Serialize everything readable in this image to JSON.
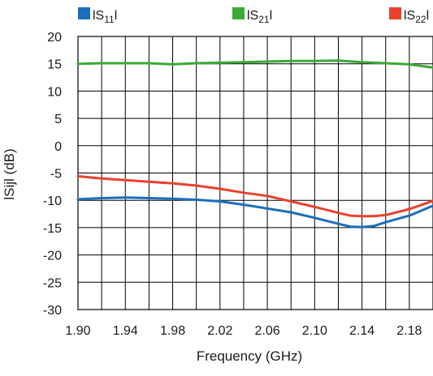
{
  "chart_data": {
    "type": "line",
    "title": "",
    "xlabel": "Frequency (GHz)",
    "ylabel": "lSijl (dB)",
    "xlim": [
      1.9,
      2.2
    ],
    "ylim": [
      -30,
      20
    ],
    "grid": true,
    "legend_position": "top",
    "x_ticks": [
      1.9,
      1.92,
      1.94,
      1.96,
      1.98,
      2.0,
      2.02,
      2.04,
      2.06,
      2.08,
      2.1,
      2.12,
      2.14,
      2.16,
      2.18,
      2.2
    ],
    "x_tick_labels": [
      "1.90",
      "1.94",
      "1.98",
      "2.02",
      "2.06",
      "2.10",
      "2.14",
      "2.18"
    ],
    "x_tick_label_values": [
      1.9,
      1.94,
      1.98,
      2.02,
      2.06,
      2.1,
      2.14,
      2.18
    ],
    "y_ticks": [
      20,
      15,
      10,
      5,
      0,
      -5,
      -10,
      -15,
      -20,
      -25,
      -30
    ],
    "y_tick_labels": [
      "20",
      "15",
      "10",
      "5",
      "0",
      "-5",
      "-10",
      "-15",
      "-20",
      "-25",
      "-30"
    ],
    "legend": [
      {
        "prefix": "lS",
        "sub": "11",
        "suffix": "l",
        "color": "#1a6fba"
      },
      {
        "prefix": "lS",
        "sub": "21",
        "suffix": "l",
        "color": "#3aaa35"
      },
      {
        "prefix": "lS",
        "sub": "22",
        "suffix": "l",
        "color": "#e8412c"
      }
    ],
    "series": [
      {
        "color": "#1a6fba",
        "x": [
          1.9,
          1.92,
          1.94,
          1.96,
          1.98,
          2.0,
          2.02,
          2.04,
          2.06,
          2.08,
          2.1,
          2.12,
          2.13,
          2.14,
          2.15,
          2.16,
          2.18,
          2.2
        ],
        "y": [
          -9.8,
          -9.6,
          -9.5,
          -9.6,
          -9.7,
          -9.9,
          -10.2,
          -10.8,
          -11.5,
          -12.2,
          -13.2,
          -14.3,
          -14.8,
          -14.9,
          -14.7,
          -14.0,
          -12.8,
          -11.0
        ]
      },
      {
        "color": "#3aaa35",
        "x": [
          1.9,
          1.92,
          1.94,
          1.96,
          1.98,
          2.0,
          2.02,
          2.04,
          2.06,
          2.08,
          2.1,
          2.12,
          2.14,
          2.16,
          2.18,
          2.2
        ],
        "y": [
          15.0,
          15.1,
          15.1,
          15.1,
          14.9,
          15.1,
          15.2,
          15.3,
          15.4,
          15.5,
          15.5,
          15.6,
          15.3,
          15.1,
          14.9,
          14.3
        ]
      },
      {
        "color": "#e8412c",
        "x": [
          1.9,
          1.92,
          1.94,
          1.96,
          1.98,
          2.0,
          2.02,
          2.04,
          2.06,
          2.08,
          2.1,
          2.12,
          2.13,
          2.14,
          2.15,
          2.16,
          2.18,
          2.2
        ],
        "y": [
          -5.6,
          -6.0,
          -6.3,
          -6.6,
          -6.9,
          -7.3,
          -7.9,
          -8.6,
          -9.2,
          -10.2,
          -11.2,
          -12.3,
          -12.8,
          -12.9,
          -12.9,
          -12.7,
          -11.6,
          -10.1
        ]
      }
    ]
  }
}
